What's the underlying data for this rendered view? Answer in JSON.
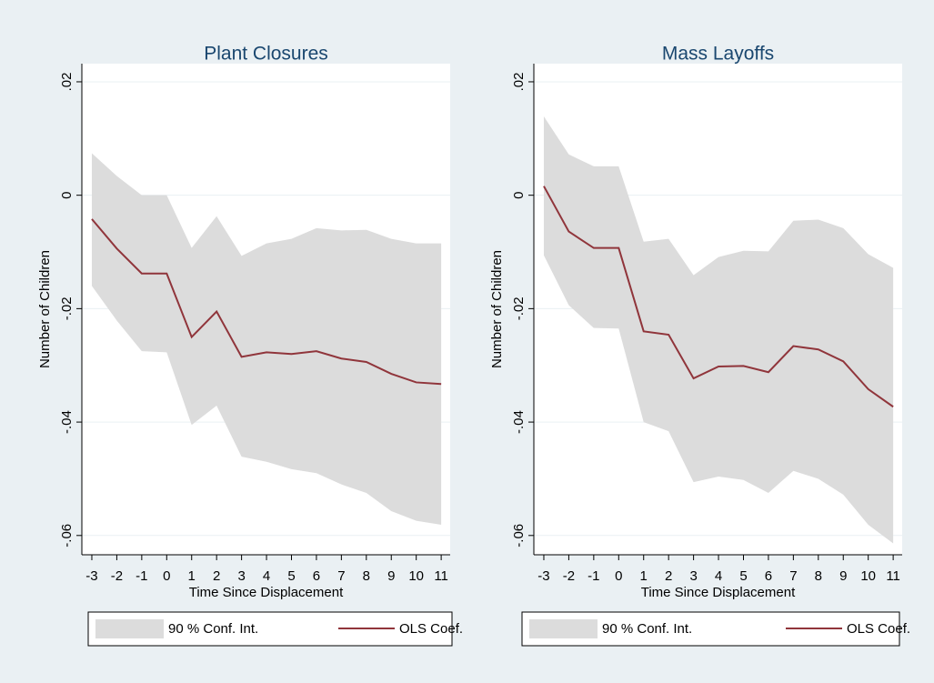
{
  "chart_data": [
    {
      "type": "line",
      "title": "Plant Closures",
      "x_label": "Time Since Displacement",
      "y_label": "Number of Children",
      "x": [
        -3,
        -2,
        -1,
        0,
        1,
        2,
        3,
        4,
        5,
        6,
        7,
        8,
        9,
        10,
        11
      ],
      "xlim": [
        -3.4,
        11.36
      ],
      "xticks": [
        -3,
        -2,
        -1,
        0,
        1,
        2,
        3,
        4,
        5,
        6,
        7,
        8,
        9,
        10,
        11
      ],
      "ylim": [
        -0.0634,
        0.0232
      ],
      "yticks": [
        {
          "value": 0.02,
          "label": ".02"
        },
        0,
        {
          "value": -0.02,
          "label": "-.02"
        },
        {
          "value": -0.04,
          "label": "-.04"
        },
        {
          "value": -0.06,
          "label": "-.06"
        }
      ],
      "grid": true,
      "legend": "bottom",
      "series": [
        {
          "name": "90 % Conf. Int.",
          "color": "#dcdcdc",
          "upper": [
            0.0074,
            0.0034,
            0,
            0,
            -0.0093,
            -0.0037,
            -0.0107,
            -0.0085,
            -0.0077,
            -0.0058,
            -0.0062,
            -0.0061,
            -0.0077,
            -0.0085,
            -0.0085
          ],
          "lower": [
            -0.016,
            -0.0221,
            -0.0275,
            -0.0277,
            -0.0405,
            -0.0371,
            -0.0461,
            -0.047,
            -0.0483,
            -0.049,
            -0.051,
            -0.0525,
            -0.0557,
            -0.0574,
            -0.0581
          ]
        },
        {
          "name": "OLS Coef.",
          "color": "#90353b",
          "values": [
            -0.0042,
            -0.0094,
            -0.0138,
            -0.0138,
            -0.025,
            -0.0205,
            -0.0285,
            -0.0277,
            -0.028,
            -0.0275,
            -0.0288,
            -0.0294,
            -0.0315,
            -0.033,
            -0.0333
          ]
        }
      ]
    },
    {
      "type": "line",
      "title": "Mass Layoffs",
      "x_label": "Time Since Displacement",
      "y_label": "Number of Children",
      "x": [
        -3,
        -2,
        -1,
        0,
        1,
        2,
        3,
        4,
        5,
        6,
        7,
        8,
        9,
        10,
        11
      ],
      "xlim": [
        -3.4,
        11.36
      ],
      "xticks": [
        -3,
        -2,
        -1,
        0,
        1,
        2,
        3,
        4,
        5,
        6,
        7,
        8,
        9,
        10,
        11
      ],
      "ylim": [
        -0.0634,
        0.0232
      ],
      "yticks": [
        {
          "value": 0.02,
          "label": ".02"
        },
        0,
        {
          "value": -0.02,
          "label": "-.02"
        },
        {
          "value": -0.04,
          "label": "-.04"
        },
        {
          "value": -0.06,
          "label": "-.06"
        }
      ],
      "grid": true,
      "legend": "bottom",
      "series": [
        {
          "name": "90 % Conf. Int.",
          "color": "#dcdcdc",
          "upper": [
            0.0139,
            0.0072,
            0.0051,
            0.0051,
            -0.0082,
            -0.0077,
            -0.0141,
            -0.0109,
            -0.0098,
            -0.0099,
            -0.0045,
            -0.0043,
            -0.0058,
            -0.0104,
            -0.0128
          ],
          "lower": [
            -0.0106,
            -0.0194,
            -0.0234,
            -0.0235,
            -0.04,
            -0.0416,
            -0.0506,
            -0.0496,
            -0.0502,
            -0.0525,
            -0.0486,
            -0.05,
            -0.0528,
            -0.0581,
            -0.0614
          ]
        },
        {
          "name": "OLS Coef.",
          "color": "#90353b",
          "values": [
            0.0016,
            -0.0064,
            -0.0093,
            -0.0093,
            -0.024,
            -0.0246,
            -0.0323,
            -0.0302,
            -0.0301,
            -0.0312,
            -0.0266,
            -0.0272,
            -0.0293,
            -0.0342,
            -0.0373
          ]
        }
      ]
    }
  ]
}
